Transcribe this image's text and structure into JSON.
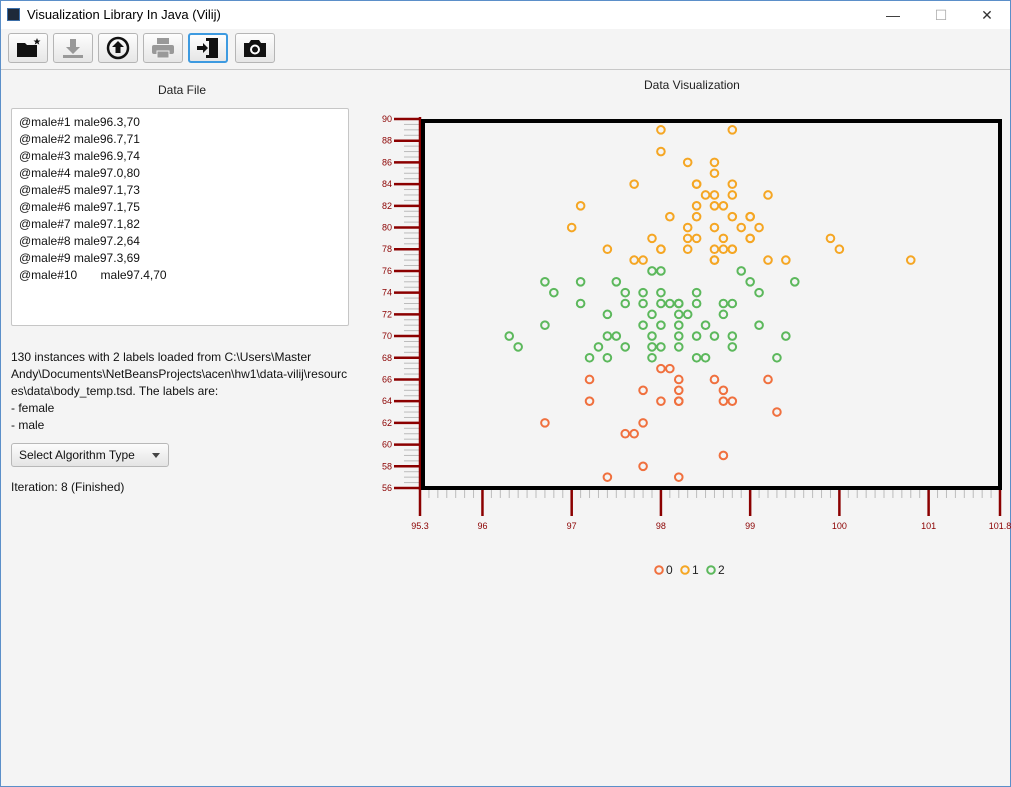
{
  "window": {
    "title": "Visualization Library In Java (Vilij)",
    "minimize": "—",
    "maximize": "☐",
    "close": "✕"
  },
  "toolbar": {
    "buttons": [
      {
        "name": "new-button",
        "icon": "new-folder-icon"
      },
      {
        "name": "save-button",
        "icon": "download-icon"
      },
      {
        "name": "load-button",
        "icon": "upload-icon"
      },
      {
        "name": "print-button",
        "icon": "print-icon"
      },
      {
        "name": "exit-button",
        "icon": "exit-icon"
      },
      {
        "name": "screenshot-button",
        "icon": "camera-icon"
      }
    ]
  },
  "left": {
    "title": "Data File",
    "file_text": "@male#1 male96.3,70\n@male#2 male96.7,71\n@male#3 male96.9,74\n@male#4 male97.0,80\n@male#5 male97.1,73\n@male#6 male97.1,75\n@male#7 male97.1,82\n@male#8 male97.2,64\n@male#9 male97.3,69\n@male#10       male97.4,70",
    "info_lines": [
      "130 instances with 2 labels loaded from C:\\Users\\Master",
      "Andy\\Documents\\NetBeansProjects\\acen\\hw1\\data-vilij\\resourc",
      "es\\data\\body_temp.tsd. The labels are:",
      "- female",
      "- male"
    ],
    "select_label": "Select Algorithm Type",
    "iteration": "Iteration: 8 (Finished)"
  },
  "chart_data": {
    "type": "scatter",
    "title": "Data Visualization",
    "xlim": [
      95.3,
      101.8
    ],
    "ylim": [
      56,
      90
    ],
    "x_ticks": [
      95.3,
      96,
      97,
      98,
      99,
      100,
      101,
      101.8
    ],
    "y_ticks": [
      56,
      58,
      60,
      62,
      64,
      66,
      68,
      70,
      72,
      74,
      76,
      78,
      80,
      82,
      84,
      86,
      88,
      90
    ],
    "legend": "bottom",
    "colors": {
      "0": "#f0703e",
      "1": "#f5a623",
      "2": "#5cb85c"
    },
    "series": [
      {
        "name": "0",
        "points": [
          [
            98.0,
            67
          ],
          [
            98.1,
            67
          ],
          [
            97.2,
            66
          ],
          [
            98.2,
            66
          ],
          [
            98.6,
            66
          ],
          [
            99.2,
            66
          ],
          [
            97.8,
            65
          ],
          [
            98.2,
            65
          ],
          [
            98.7,
            65
          ],
          [
            97.2,
            64
          ],
          [
            98.0,
            64
          ],
          [
            98.2,
            64
          ],
          [
            98.2,
            64
          ],
          [
            98.7,
            64
          ],
          [
            98.8,
            64
          ],
          [
            99.3,
            63
          ],
          [
            96.7,
            62
          ],
          [
            97.8,
            62
          ],
          [
            97.6,
            61
          ],
          [
            97.7,
            61
          ],
          [
            98.7,
            59
          ],
          [
            97.8,
            58
          ],
          [
            97.4,
            57
          ],
          [
            98.2,
            57
          ]
        ]
      },
      {
        "name": "1",
        "points": [
          [
            98.0,
            89
          ],
          [
            98.8,
            89
          ],
          [
            98.0,
            87
          ],
          [
            98.3,
            86
          ],
          [
            98.6,
            86
          ],
          [
            98.6,
            85
          ],
          [
            97.7,
            84
          ],
          [
            98.4,
            84
          ],
          [
            98.4,
            84
          ],
          [
            98.8,
            84
          ],
          [
            98.5,
            83
          ],
          [
            98.6,
            83
          ],
          [
            98.8,
            83
          ],
          [
            99.2,
            83
          ],
          [
            97.1,
            82
          ],
          [
            98.4,
            82
          ],
          [
            98.6,
            82
          ],
          [
            98.7,
            82
          ],
          [
            98.1,
            81
          ],
          [
            98.4,
            81
          ],
          [
            98.8,
            81
          ],
          [
            99.0,
            81
          ],
          [
            99.0,
            81
          ],
          [
            97.0,
            80
          ],
          [
            98.3,
            80
          ],
          [
            98.6,
            80
          ],
          [
            98.9,
            80
          ],
          [
            99.1,
            80
          ],
          [
            97.9,
            79
          ],
          [
            98.3,
            79
          ],
          [
            98.4,
            79
          ],
          [
            98.7,
            79
          ],
          [
            99.0,
            79
          ],
          [
            99.0,
            79
          ],
          [
            99.9,
            79
          ],
          [
            97.4,
            78
          ],
          [
            98.0,
            78
          ],
          [
            98.0,
            78
          ],
          [
            98.3,
            78
          ],
          [
            98.6,
            78
          ],
          [
            98.7,
            78
          ],
          [
            98.8,
            78
          ],
          [
            98.8,
            78
          ],
          [
            100.0,
            78
          ],
          [
            97.7,
            77
          ],
          [
            97.8,
            77
          ],
          [
            98.6,
            77
          ],
          [
            98.6,
            77
          ],
          [
            99.2,
            77
          ],
          [
            99.4,
            77
          ],
          [
            100.8,
            77
          ]
        ]
      },
      {
        "name": "2",
        "points": [
          [
            97.9,
            76
          ],
          [
            98.0,
            76
          ],
          [
            98.9,
            76
          ],
          [
            96.7,
            75
          ],
          [
            97.1,
            75
          ],
          [
            97.5,
            75
          ],
          [
            99.0,
            75
          ],
          [
            99.5,
            75
          ],
          [
            96.8,
            74
          ],
          [
            97.6,
            74
          ],
          [
            97.8,
            74
          ],
          [
            98.0,
            74
          ],
          [
            98.4,
            74
          ],
          [
            99.1,
            74
          ],
          [
            97.1,
            73
          ],
          [
            97.6,
            73
          ],
          [
            97.8,
            73
          ],
          [
            98.0,
            73
          ],
          [
            98.1,
            73
          ],
          [
            98.2,
            73
          ],
          [
            98.2,
            73
          ],
          [
            98.4,
            73
          ],
          [
            98.7,
            73
          ],
          [
            98.8,
            73
          ],
          [
            97.4,
            72
          ],
          [
            97.9,
            72
          ],
          [
            98.2,
            72
          ],
          [
            98.3,
            72
          ],
          [
            98.7,
            72
          ],
          [
            96.7,
            71
          ],
          [
            97.8,
            71
          ],
          [
            98.0,
            71
          ],
          [
            98.2,
            71
          ],
          [
            98.5,
            71
          ],
          [
            99.1,
            71
          ],
          [
            96.3,
            70
          ],
          [
            97.4,
            70
          ],
          [
            97.5,
            70
          ],
          [
            97.9,
            70
          ],
          [
            98.2,
            70
          ],
          [
            98.4,
            70
          ],
          [
            98.6,
            70
          ],
          [
            98.8,
            70
          ],
          [
            99.4,
            70
          ],
          [
            96.4,
            69
          ],
          [
            97.3,
            69
          ],
          [
            97.6,
            69
          ],
          [
            97.9,
            69
          ],
          [
            98.0,
            69
          ],
          [
            98.2,
            69
          ],
          [
            98.8,
            69
          ],
          [
            97.2,
            68
          ],
          [
            97.4,
            68
          ],
          [
            97.9,
            68
          ],
          [
            98.4,
            68
          ],
          [
            98.5,
            68
          ],
          [
            99.3,
            68
          ]
        ]
      }
    ]
  }
}
